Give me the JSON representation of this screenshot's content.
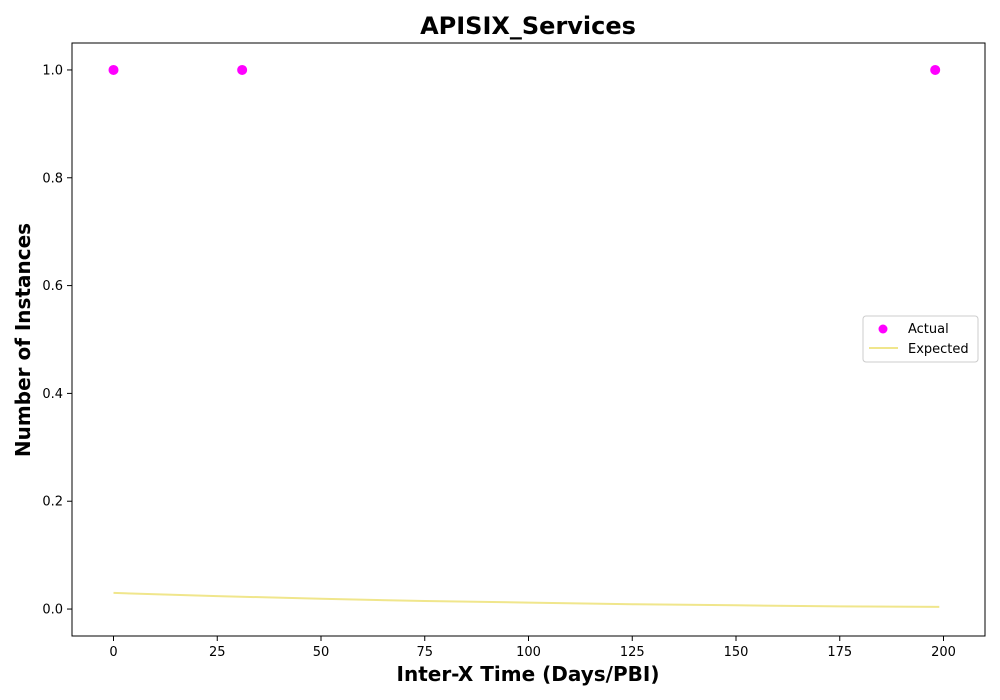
{
  "chart_data": {
    "type": "scatter",
    "title": "APISIX_Services",
    "xlabel": "Inter-X Time (Days/PBI)",
    "ylabel": "Number of Instances",
    "xlim": [
      -10,
      210
    ],
    "ylim": [
      -0.05,
      1.05
    ],
    "x_ticks": [
      0,
      25,
      50,
      75,
      100,
      125,
      150,
      175,
      200
    ],
    "y_ticks": [
      0.0,
      0.2,
      0.4,
      0.6,
      0.8,
      1.0
    ],
    "x_tick_labels": [
      "0",
      "25",
      "50",
      "75",
      "100",
      "125",
      "150",
      "175",
      "200"
    ],
    "y_tick_labels": [
      "0.0",
      "0.2",
      "0.4",
      "0.6",
      "0.8",
      "1.0"
    ],
    "grid": false,
    "legend_position": "center-right",
    "series": [
      {
        "name": "Actual",
        "kind": "scatter",
        "color": "#ff00ff",
        "points": [
          {
            "x": 0,
            "y": 1.0
          },
          {
            "x": 31,
            "y": 1.0
          },
          {
            "x": 198,
            "y": 1.0
          }
        ]
      },
      {
        "name": "Expected",
        "kind": "line",
        "color": "#f0e68c",
        "points": [
          {
            "x": 0,
            "y": 0.03
          },
          {
            "x": 25,
            "y": 0.024
          },
          {
            "x": 50,
            "y": 0.019
          },
          {
            "x": 75,
            "y": 0.015
          },
          {
            "x": 100,
            "y": 0.012
          },
          {
            "x": 125,
            "y": 0.009
          },
          {
            "x": 150,
            "y": 0.007
          },
          {
            "x": 175,
            "y": 0.005
          },
          {
            "x": 199,
            "y": 0.004
          }
        ]
      }
    ]
  }
}
